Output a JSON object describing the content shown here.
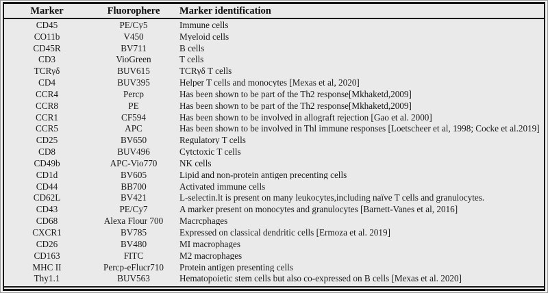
{
  "table": {
    "columns": [
      "Marker",
      "Fluorophere",
      "Marker identification"
    ],
    "rows": [
      {
        "marker": "CD45",
        "fluorophore": "PE/Cy5",
        "identification": "Immune cells"
      },
      {
        "marker": "CO11b",
        "fluorophore": "V450",
        "identification": "Myeloid cells"
      },
      {
        "marker": "CD45R",
        "fluorophore": "BV711",
        "identification": "B cells"
      },
      {
        "marker": "CD3",
        "fluorophore": "VioGreen",
        "identification": "T cells"
      },
      {
        "marker": "TCRγδ",
        "fluorophore": "BUV615",
        "identification": "TCRγδ T cells"
      },
      {
        "marker": "CD4",
        "fluorophore": "BUV395",
        "identification": "Helper T cells and monocytes [Mexas et al, 2020]"
      },
      {
        "marker": "CCR4",
        "fluorophore": "Percp",
        "identification": "Has been shown to be part of the Th2 response[Mkhaketd,2009]"
      },
      {
        "marker": "CCR8",
        "fluorophore": "PE",
        "identification": "Has been shown to be part of the Th2 response[Mkhaketd,2009]"
      },
      {
        "marker": "CCR1",
        "fluorophore": "CF594",
        "identification": "Has been shown to be involved in allograft rejection [Gao et al. 2000]"
      },
      {
        "marker": "CCR5",
        "fluorophore": "APC",
        "identification": "Has been shown to be involved in Thl immune responses [Loetscheer et al, 1998; Cocke et al.2019]"
      },
      {
        "marker": "CD25",
        "fluorophore": "BV650",
        "identification": "Regulatory T cells"
      },
      {
        "marker": "CD8",
        "fluorophore": "BUV496",
        "identification": "Cytctoxic T cells"
      },
      {
        "marker": "CD49b",
        "fluorophore": "APC-Vio770",
        "identification": "NK cells"
      },
      {
        "marker": "CD1d",
        "fluorophore": "BV605",
        "identification": "Lipid and non-protein antigen precenting cells"
      },
      {
        "marker": "CD44",
        "fluorophore": "BB700",
        "identification": "Activated immune cells"
      },
      {
        "marker": "CD62L",
        "fluorophore": "BV421",
        "identification": "L-selectin.lt is present on many leukocytes,including naïve T cells and granulocytes."
      },
      {
        "marker": "CD43",
        "fluorophore": "PE/Cy7",
        "identification": "A marker present on monocytes and granulocytes [Barnett-Vanes et al, 2016]"
      },
      {
        "marker": "CD68",
        "fluorophore": "Alexa Flour 700",
        "identification": "Macrcphages"
      },
      {
        "marker": "CXCR1",
        "fluorophore": "BV785",
        "identification": "Expressed on classical dendritic cells [Ermoza et al. 2019]"
      },
      {
        "marker": "CD26",
        "fluorophore": "BV480",
        "identification": "MI macrophages"
      },
      {
        "marker": "CD163",
        "fluorophore": "FITC",
        "identification": "M2 macrophages"
      },
      {
        "marker": "MHC II",
        "fluorophore": "Percp-eFlucr710",
        "identification": "Protein antigen presenting cells"
      },
      {
        "marker": "Thy1.1",
        "fluorophore": "BUV563",
        "identification": "Hematopoietic stem cells but also co-expressed on B cells [Mexas et al. 2020]"
      }
    ]
  }
}
